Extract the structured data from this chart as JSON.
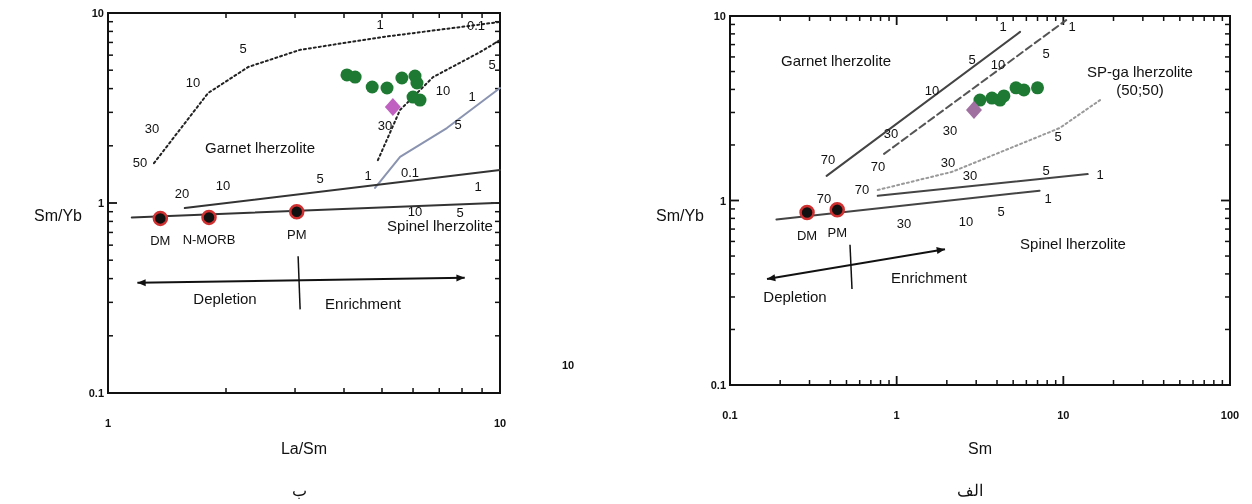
{
  "chart_data": [
    {
      "type": "scatter",
      "xlabel": "La/Sm",
      "ylabel": "Sm/Yb",
      "log": "xy",
      "xlim": [
        1,
        10
      ],
      "ylim": [
        0.1,
        10
      ],
      "xticks": [
        1,
        10
      ],
      "yticks": [
        0.1,
        1,
        10
      ],
      "series": [
        {
          "type": "line",
          "line_style": "dotted",
          "color": "#222222",
          "x": [
            1.31,
            1.8,
            2.28,
            3.09,
            5.03,
            10
          ],
          "values": [
            1.62,
            3.79,
            5.2,
            6.4,
            7.48,
            8.97
          ]
        },
        {
          "type": "line",
          "line_style": "dotted",
          "color": "#222222",
          "x": [
            4.88,
            5.56,
            6.75,
            8.9,
            10
          ],
          "values": [
            1.68,
            3.09,
            4.6,
            6.23,
            7.2
          ]
        },
        {
          "type": "line",
          "line_style": "solid",
          "color": "#8a94b0",
          "x": [
            4.8,
            5.56,
            7.32,
            10
          ],
          "values": [
            1.2,
            1.75,
            2.48,
            4.03
          ]
        },
        {
          "type": "line",
          "line_style": "solid",
          "color": "#333333",
          "x": [
            1.57,
            10
          ],
          "values": [
            0.94,
            1.49
          ]
        },
        {
          "type": "line",
          "line_style": "solid",
          "color": "#333333",
          "x": [
            1.15,
            9.7
          ],
          "values": [
            0.84,
            1.0
          ]
        },
        {
          "type": "scatter",
          "marker": "circle",
          "color": "#111111",
          "x": [
            1.36,
            1.81,
            3.03
          ],
          "values": [
            0.83,
            0.84,
            0.9
          ]
        },
        {
          "type": "scatter",
          "marker": "circle",
          "color": "#1e7a32",
          "x": [
            4.07,
            4.27,
            4.72,
            5.15,
            5.62,
            6.07,
            6.14,
            6.0,
            6.25
          ],
          "values": [
            4.72,
            4.6,
            4.08,
            4.03,
            4.55,
            4.66,
            4.28,
            3.61,
            3.48
          ]
        },
        {
          "type": "scatter",
          "marker": "diamond",
          "color": "#c060c0",
          "x": [
            5.33
          ],
          "values": [
            3.2
          ]
        }
      ],
      "annotations": [
        "ب",
        "10",
        "50",
        "30",
        "10",
        "5",
        "1",
        "0.1",
        "5",
        "10",
        "30",
        "5",
        "1",
        "1",
        "0.1",
        "20",
        "10",
        "5",
        "10",
        "5",
        "1",
        "Garnet lherzolite",
        "Spinel lherzolite",
        {
          "text": "DM",
          "x": 1.36,
          "y": 0.83
        },
        {
          "text": "N-MORB",
          "x": 1.81,
          "y": 0.84
        },
        {
          "text": "PM",
          "x": 3.03,
          "y": 0.9
        },
        "Depletion",
        "Enrichment"
      ]
    },
    {
      "type": "scatter",
      "xlabel": "Sm",
      "ylabel": "Sm/Yb",
      "log": "xy",
      "xlim": [
        0.1,
        100
      ],
      "ylim": [
        0.1,
        10
      ],
      "xticks": [
        0.1,
        1,
        10,
        100
      ],
      "yticks": [
        0.1,
        1,
        10
      ],
      "series": [
        {
          "type": "line",
          "line_style": "solid",
          "color": "#444444",
          "x": [
            0.38,
            5.5
          ],
          "values": [
            1.36,
            8.2
          ]
        },
        {
          "type": "line",
          "line_style": "dashed",
          "color": "#555555",
          "x": [
            0.84,
            10.4
          ],
          "values": [
            1.79,
            9.5
          ]
        },
        {
          "type": "line",
          "line_style": "dotted",
          "color": "#999999",
          "x": [
            0.77,
            2.15,
            9.5,
            16.6
          ],
          "values": [
            1.14,
            1.43,
            2.47,
            3.5
          ]
        },
        {
          "type": "line",
          "line_style": "solid",
          "color": "#444444",
          "x": [
            0.77,
            14.0
          ],
          "values": [
            1.06,
            1.39
          ]
        },
        {
          "type": "line",
          "line_style": "solid",
          "color": "#444444",
          "x": [
            0.19,
            7.2
          ],
          "values": [
            0.79,
            1.13
          ]
        },
        {
          "type": "scatter",
          "marker": "circle",
          "color": "#111111",
          "x": [
            0.29,
            0.44
          ],
          "values": [
            0.86,
            0.89
          ]
        },
        {
          "type": "scatter",
          "marker": "circle",
          "color": "#1e7a32",
          "x": [
            3.16,
            3.73,
            4.17,
            4.4,
            5.2,
            5.8,
            7.0
          ],
          "values": [
            3.5,
            3.59,
            3.5,
            3.69,
            4.08,
            3.97,
            4.08
          ]
        },
        {
          "type": "scatter",
          "marker": "diamond",
          "color": "#a070a0",
          "x": [
            2.91
          ],
          "values": [
            3.09
          ]
        }
      ],
      "annotations": [
        "الف",
        "Garnet lherzolite",
        "SP-ga lherzolite\n(50;50)",
        "1",
        "1",
        "5",
        "10",
        "5",
        "10",
        "30",
        "30",
        "70",
        "70",
        "30",
        "5",
        "70",
        "70",
        "30",
        "5",
        "1",
        "1",
        "30",
        "10",
        "5",
        "Spinel lherzolite",
        {
          "text": "DM",
          "x": 0.29,
          "y": 0.86
        },
        {
          "text": "PM",
          "x": 0.44,
          "y": 0.89
        },
        "Depletion",
        "Enrichment"
      ]
    }
  ]
}
